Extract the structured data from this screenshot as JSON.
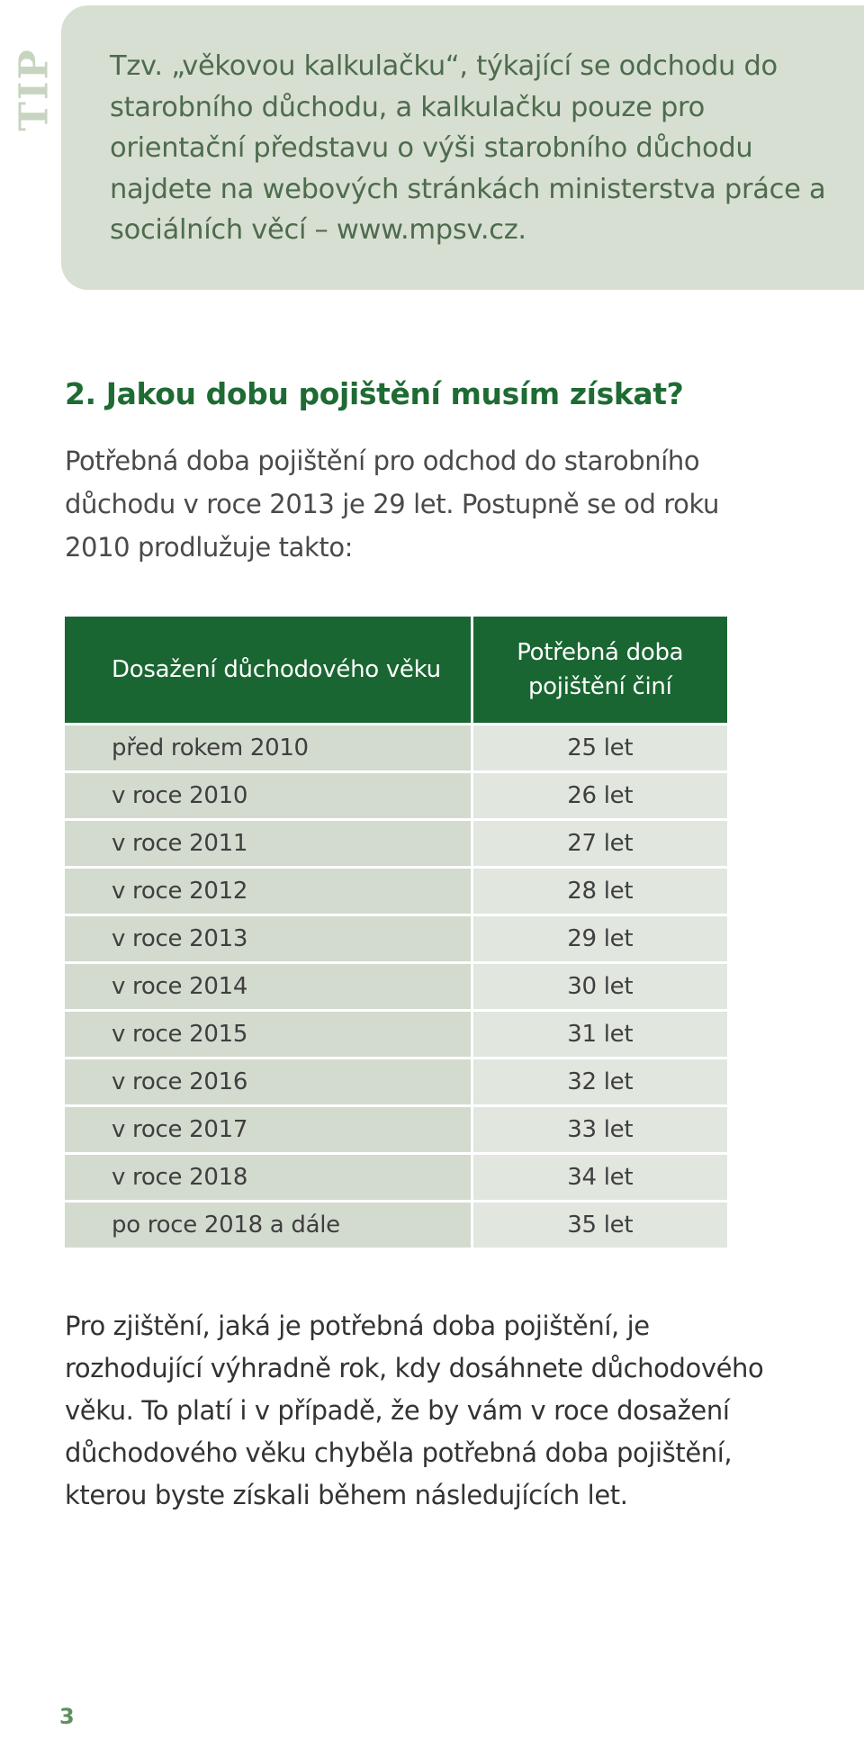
{
  "tip": {
    "label": "TIP",
    "text": "Tzv. „věkovou kalkulačku“, týkající se odchodu do starobního důchodu, a kalkulačku pouze pro orientační představu o výši starobního důchodu najdete na webových stránkách ministerstva práce a sociálních věcí – www.mpsv.cz."
  },
  "section": {
    "heading": "2. Jakou dobu pojištění musím získat?",
    "intro": "Potřebná doba pojištění pro odchod do starobního důchodu v roce 2013 je 29 let. Postupně se od roku 2010 prodlužuje takto:"
  },
  "table": {
    "headers": [
      "Dosažení důchodového věku",
      "Potřebná doba pojištění činí"
    ],
    "rows": [
      {
        "year": "před rokem 2010",
        "value": "25 let"
      },
      {
        "year": "v roce 2010",
        "value": "26 let"
      },
      {
        "year": "v roce 2011",
        "value": "27 let"
      },
      {
        "year": "v roce 2012",
        "value": "28 let"
      },
      {
        "year": "v roce 2013",
        "value": "29 let"
      },
      {
        "year": "v roce 2014",
        "value": "30 let"
      },
      {
        "year": "v roce 2015",
        "value": "31 let"
      },
      {
        "year": "v roce 2016",
        "value": "32 let"
      },
      {
        "year": "v roce 2017",
        "value": "33 let"
      },
      {
        "year": "v roce 2018",
        "value": "34 let"
      },
      {
        "year": "po roce 2018 a dále",
        "value": "35 let"
      }
    ]
  },
  "note": "Pro zjištění, jaká je potřebná doba pojištění, je rozhodující výhradně rok, kdy dosáhnete důchodového věku. To platí i v případě, že by vám v roce dosažení důchodového věku chyběla potřebná doba pojištění, kterou byste získali během následujících let.",
  "page_number": "3",
  "colors": {
    "accent_green": "#1a6632",
    "tip_background": "#d7dfd2",
    "table_row_light": "#e1e7df",
    "table_row_dark": "#d3dbcf"
  }
}
